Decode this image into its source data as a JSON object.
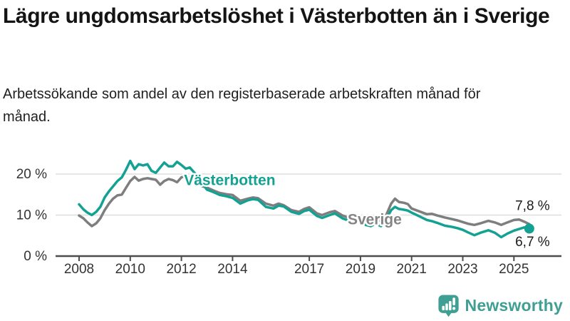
{
  "header": {
    "title": "Lägre ungdomsarbetslöshet i Västerbotten än i Sverige",
    "subtitle": "Arbetssökande som andel av den registerbaserade arbetskraften månad för månad."
  },
  "colors": {
    "accent_teal": "#12a192",
    "line_gray": "#7e7e7e",
    "label_gray": "#848484",
    "brand_teal": "#3f9f93",
    "grid": "#dedede",
    "axis": "#4d4d4d",
    "tick_text": "#333333",
    "value_text": "#1a1a1a"
  },
  "chart_data": {
    "type": "line",
    "title": "Lägre ungdomsarbetslöshet i Västerbotten än i Sverige",
    "xlabel": "",
    "ylabel": "",
    "grid": "horizontal",
    "legend_position": "inline-labels",
    "xlim": [
      2007.1,
      2026.9
    ],
    "ylim": [
      0,
      26
    ],
    "x_ticks": [
      2008,
      2010,
      2012,
      2014,
      2017,
      2019,
      2021,
      2023,
      2025
    ],
    "y_ticks": [
      {
        "value": 20,
        "label": "20 %"
      },
      {
        "value": 10,
        "label": "10 %"
      },
      {
        "value": 0,
        "label": "0 %"
      }
    ],
    "series": [
      {
        "name": "Sverige",
        "color": "#7e7e7e",
        "end_dot": false,
        "points": [
          [
            2008.0,
            9.9
          ],
          [
            2008.17,
            9.2
          ],
          [
            2008.33,
            8.2
          ],
          [
            2008.5,
            7.3
          ],
          [
            2008.67,
            8.0
          ],
          [
            2008.83,
            9.2
          ],
          [
            2009.0,
            11.2
          ],
          [
            2009.17,
            12.8
          ],
          [
            2009.33,
            14.0
          ],
          [
            2009.5,
            14.8
          ],
          [
            2009.67,
            15.0
          ],
          [
            2009.83,
            16.6
          ],
          [
            2010.0,
            18.3
          ],
          [
            2010.17,
            19.3
          ],
          [
            2010.33,
            18.4
          ],
          [
            2010.5,
            18.8
          ],
          [
            2010.67,
            19.0
          ],
          [
            2010.83,
            18.8
          ],
          [
            2011.0,
            18.6
          ],
          [
            2011.17,
            17.4
          ],
          [
            2011.33,
            18.3
          ],
          [
            2011.5,
            18.8
          ],
          [
            2011.67,
            18.5
          ],
          [
            2011.83,
            18.0
          ],
          [
            2012.0,
            19.2
          ],
          [
            2012.17,
            19.5
          ],
          [
            2012.33,
            18.9
          ],
          [
            2012.5,
            18.2
          ],
          [
            2012.67,
            17.6
          ],
          [
            2012.83,
            17.0
          ],
          [
            2013.0,
            16.7
          ],
          [
            2013.25,
            16.0
          ],
          [
            2013.5,
            15.4
          ],
          [
            2013.75,
            15.1
          ],
          [
            2014.0,
            14.9
          ],
          [
            2014.3,
            13.5
          ],
          [
            2014.6,
            14.0
          ],
          [
            2014.8,
            14.3
          ],
          [
            2015.0,
            14.1
          ],
          [
            2015.3,
            12.8
          ],
          [
            2015.6,
            12.3
          ],
          [
            2015.8,
            12.8
          ],
          [
            2016.0,
            12.4
          ],
          [
            2016.3,
            11.2
          ],
          [
            2016.6,
            10.8
          ],
          [
            2016.8,
            11.5
          ],
          [
            2017.0,
            11.9
          ],
          [
            2017.3,
            10.4
          ],
          [
            2017.5,
            10.0
          ],
          [
            2017.8,
            10.7
          ],
          [
            2018.0,
            11.0
          ],
          [
            2018.3,
            9.9
          ],
          [
            2018.6,
            9.2
          ],
          [
            2018.8,
            8.9
          ],
          [
            2019.0,
            9.3
          ],
          [
            2019.2,
            8.6
          ],
          [
            2019.4,
            8.4
          ],
          [
            2019.6,
            8.9
          ],
          [
            2019.8,
            8.5
          ],
          [
            2020.0,
            9.9
          ],
          [
            2020.2,
            12.8
          ],
          [
            2020.35,
            14.0
          ],
          [
            2020.5,
            13.2
          ],
          [
            2020.7,
            13.0
          ],
          [
            2020.85,
            12.7
          ],
          [
            2021.0,
            11.6
          ],
          [
            2021.3,
            10.9
          ],
          [
            2021.6,
            10.2
          ],
          [
            2021.8,
            10.3
          ],
          [
            2022.0,
            9.9
          ],
          [
            2022.3,
            9.4
          ],
          [
            2022.6,
            9.0
          ],
          [
            2022.8,
            8.7
          ],
          [
            2023.0,
            8.3
          ],
          [
            2023.2,
            7.9
          ],
          [
            2023.45,
            7.6
          ],
          [
            2023.7,
            8.0
          ],
          [
            2023.9,
            8.4
          ],
          [
            2024.0,
            8.6
          ],
          [
            2024.25,
            8.2
          ],
          [
            2024.5,
            7.6
          ],
          [
            2024.75,
            8.2
          ],
          [
            2025.0,
            8.8
          ],
          [
            2025.2,
            8.9
          ],
          [
            2025.4,
            8.4
          ],
          [
            2025.6,
            7.8
          ]
        ]
      },
      {
        "name": "Västerbotten",
        "color": "#12a192",
        "end_dot": true,
        "points": [
          [
            2008.0,
            12.6
          ],
          [
            2008.17,
            11.4
          ],
          [
            2008.33,
            10.6
          ],
          [
            2008.5,
            10.0
          ],
          [
            2008.67,
            10.8
          ],
          [
            2008.83,
            12.0
          ],
          [
            2009.0,
            14.3
          ],
          [
            2009.17,
            15.8
          ],
          [
            2009.33,
            17.0
          ],
          [
            2009.5,
            18.3
          ],
          [
            2009.67,
            19.2
          ],
          [
            2009.83,
            21.0
          ],
          [
            2010.0,
            23.2
          ],
          [
            2010.17,
            21.2
          ],
          [
            2010.33,
            22.4
          ],
          [
            2010.5,
            22.1
          ],
          [
            2010.67,
            22.4
          ],
          [
            2010.83,
            20.8
          ],
          [
            2011.0,
            20.3
          ],
          [
            2011.17,
            21.6
          ],
          [
            2011.33,
            22.8
          ],
          [
            2011.5,
            21.9
          ],
          [
            2011.67,
            21.9
          ],
          [
            2011.83,
            23.0
          ],
          [
            2012.0,
            22.2
          ],
          [
            2012.17,
            21.3
          ],
          [
            2012.33,
            21.6
          ],
          [
            2012.5,
            20.4
          ],
          [
            2012.67,
            19.2
          ],
          [
            2012.83,
            17.6
          ],
          [
            2013.0,
            16.2
          ],
          [
            2013.25,
            15.6
          ],
          [
            2013.5,
            14.9
          ],
          [
            2013.75,
            14.6
          ],
          [
            2014.0,
            14.2
          ],
          [
            2014.3,
            12.8
          ],
          [
            2014.6,
            13.6
          ],
          [
            2014.8,
            13.9
          ],
          [
            2015.0,
            13.7
          ],
          [
            2015.3,
            12.0
          ],
          [
            2015.6,
            11.6
          ],
          [
            2015.8,
            12.3
          ],
          [
            2016.0,
            12.1
          ],
          [
            2016.3,
            10.8
          ],
          [
            2016.6,
            10.3
          ],
          [
            2016.8,
            11.0
          ],
          [
            2017.0,
            11.3
          ],
          [
            2017.3,
            9.8
          ],
          [
            2017.5,
            9.3
          ],
          [
            2017.8,
            10.0
          ],
          [
            2018.0,
            10.4
          ],
          [
            2018.3,
            9.2
          ],
          [
            2018.6,
            8.5
          ],
          [
            2018.8,
            8.2
          ],
          [
            2019.0,
            8.6
          ],
          [
            2019.2,
            7.6
          ],
          [
            2019.4,
            7.3
          ],
          [
            2019.6,
            7.9
          ],
          [
            2019.8,
            7.3
          ],
          [
            2020.0,
            8.9
          ],
          [
            2020.2,
            11.2
          ],
          [
            2020.35,
            12.0
          ],
          [
            2020.5,
            11.5
          ],
          [
            2020.7,
            11.3
          ],
          [
            2020.85,
            11.1
          ],
          [
            2021.0,
            10.6
          ],
          [
            2021.3,
            9.7
          ],
          [
            2021.6,
            8.8
          ],
          [
            2021.8,
            8.5
          ],
          [
            2022.0,
            8.1
          ],
          [
            2022.3,
            7.4
          ],
          [
            2022.6,
            7.1
          ],
          [
            2022.8,
            6.8
          ],
          [
            2023.0,
            6.4
          ],
          [
            2023.2,
            5.8
          ],
          [
            2023.45,
            5.1
          ],
          [
            2023.7,
            5.7
          ],
          [
            2023.9,
            6.1
          ],
          [
            2024.0,
            6.3
          ],
          [
            2024.25,
            5.7
          ],
          [
            2024.5,
            4.6
          ],
          [
            2024.75,
            5.5
          ],
          [
            2025.0,
            6.2
          ],
          [
            2025.2,
            6.6
          ],
          [
            2025.4,
            7.0
          ],
          [
            2025.6,
            6.7
          ]
        ]
      }
    ],
    "series_labels": [
      {
        "text": "Västerbotten",
        "year": 2012.1,
        "value": 17.3,
        "color": "#12a192"
      },
      {
        "text": "Sverige",
        "year": 2018.5,
        "value": 7.7,
        "color": "#848484"
      }
    ],
    "end_labels": [
      {
        "text": "7,8 %",
        "year": 2025.05,
        "value": 11.2
      },
      {
        "text": "6,7 %",
        "year": 2025.05,
        "value": 2.4
      }
    ]
  },
  "footer": {
    "brand": "Newsworthy"
  }
}
